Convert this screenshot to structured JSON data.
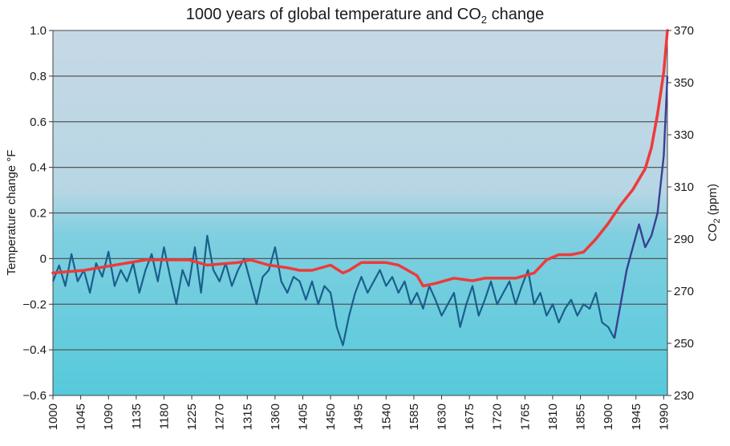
{
  "chart_data": {
    "type": "line",
    "title_main": "1000 years of global temperature and CO",
    "title_sub": "2",
    "title_tail": " change",
    "ylabel_left": "Temperature change °F",
    "ylabel_right_main": "CO",
    "ylabel_right_sub": "2",
    "ylabel_right_tail": " (ppm)",
    "xlim": [
      1000,
      1996
    ],
    "ylim_left": [
      -0.6,
      1.0
    ],
    "ylim_right": [
      230,
      370
    ],
    "grid": "horizontal",
    "x_ticks": [
      "1000",
      "1045",
      "1090",
      "1135",
      "1180",
      "1225",
      "1270",
      "1315",
      "1360",
      "1405",
      "1450",
      "1495",
      "1540",
      "1585",
      "1630",
      "1675",
      "1720",
      "1765",
      "1810",
      "1855",
      "1900",
      "1945",
      "1990"
    ],
    "y_left_ticks": [
      "1.0",
      "0.8",
      "0.6",
      "0.4",
      "0.2",
      "0",
      "−0.2",
      "−0.4",
      "−0.6"
    ],
    "y_right_ticks": [
      "370",
      "350",
      "330",
      "310",
      "290",
      "270",
      "250",
      "230"
    ],
    "colors": {
      "plot_top": "#c6d8e6",
      "plot_bottom": "#55cadb",
      "temperature": "#1a5f8c",
      "temperature_recent": "#3b3f92",
      "co2": "#ee3a3a",
      "grid": "#555555"
    },
    "series": [
      {
        "name": "Temperature change",
        "axis": "left",
        "x": [
          1000,
          1010,
          1020,
          1030,
          1040,
          1050,
          1060,
          1070,
          1080,
          1090,
          1100,
          1110,
          1120,
          1130,
          1140,
          1150,
          1160,
          1170,
          1180,
          1190,
          1200,
          1210,
          1220,
          1230,
          1240,
          1250,
          1260,
          1270,
          1280,
          1290,
          1300,
          1310,
          1320,
          1330,
          1340,
          1350,
          1360,
          1370,
          1380,
          1390,
          1400,
          1410,
          1420,
          1430,
          1440,
          1450,
          1460,
          1470,
          1480,
          1490,
          1500,
          1510,
          1520,
          1530,
          1540,
          1550,
          1560,
          1570,
          1580,
          1590,
          1600,
          1610,
          1620,
          1630,
          1640,
          1650,
          1660,
          1670,
          1680,
          1690,
          1700,
          1710,
          1720,
          1730,
          1740,
          1750,
          1760,
          1770,
          1780,
          1790,
          1800,
          1810,
          1820,
          1830,
          1840,
          1850,
          1860,
          1870,
          1880,
          1890,
          1900,
          1910,
          1920,
          1930,
          1940,
          1950,
          1960,
          1970,
          1980,
          1990,
          1996
        ],
        "values": [
          -0.1,
          -0.03,
          -0.12,
          0.02,
          -0.1,
          -0.05,
          -0.15,
          -0.02,
          -0.08,
          0.03,
          -0.12,
          -0.05,
          -0.1,
          -0.02,
          -0.15,
          -0.05,
          0.02,
          -0.1,
          0.05,
          -0.08,
          -0.2,
          -0.05,
          -0.12,
          0.05,
          -0.15,
          0.1,
          -0.05,
          -0.1,
          -0.02,
          -0.12,
          -0.05,
          0.0,
          -0.1,
          -0.2,
          -0.08,
          -0.05,
          0.05,
          -0.1,
          -0.15,
          -0.08,
          -0.1,
          -0.18,
          -0.1,
          -0.2,
          -0.12,
          -0.15,
          -0.3,
          -0.38,
          -0.25,
          -0.15,
          -0.08,
          -0.15,
          -0.1,
          -0.05,
          -0.12,
          -0.08,
          -0.15,
          -0.1,
          -0.2,
          -0.15,
          -0.22,
          -0.12,
          -0.18,
          -0.25,
          -0.2,
          -0.15,
          -0.3,
          -0.2,
          -0.12,
          -0.25,
          -0.18,
          -0.1,
          -0.2,
          -0.15,
          -0.1,
          -0.2,
          -0.12,
          -0.05,
          -0.2,
          -0.15,
          -0.25,
          -0.2,
          -0.28,
          -0.22,
          -0.18,
          -0.25,
          -0.2,
          -0.22,
          -0.15,
          -0.28,
          -0.3,
          -0.35,
          -0.2,
          -0.05,
          0.05,
          0.15,
          0.05,
          0.1,
          0.2,
          0.45,
          0.8
        ]
      },
      {
        "name": "CO2",
        "axis": "right",
        "x": [
          1000,
          1050,
          1100,
          1150,
          1180,
          1220,
          1250,
          1300,
          1320,
          1350,
          1380,
          1400,
          1420,
          1450,
          1470,
          1480,
          1500,
          1540,
          1560,
          1590,
          1600,
          1620,
          1650,
          1680,
          1700,
          1750,
          1780,
          1800,
          1820,
          1840,
          1860,
          1880,
          1900,
          1920,
          1940,
          1950,
          1960,
          1970,
          1980,
          1990,
          1996
        ],
        "values": [
          277,
          278,
          280,
          282,
          282,
          282,
          280,
          281,
          282,
          280,
          279,
          278,
          278,
          280,
          277,
          278,
          281,
          281,
          280,
          276,
          272,
          273,
          275,
          274,
          275,
          275,
          277,
          282,
          284,
          284,
          285,
          290,
          296,
          303,
          309,
          313,
          317,
          325,
          338,
          354,
          370
        ]
      }
    ]
  }
}
